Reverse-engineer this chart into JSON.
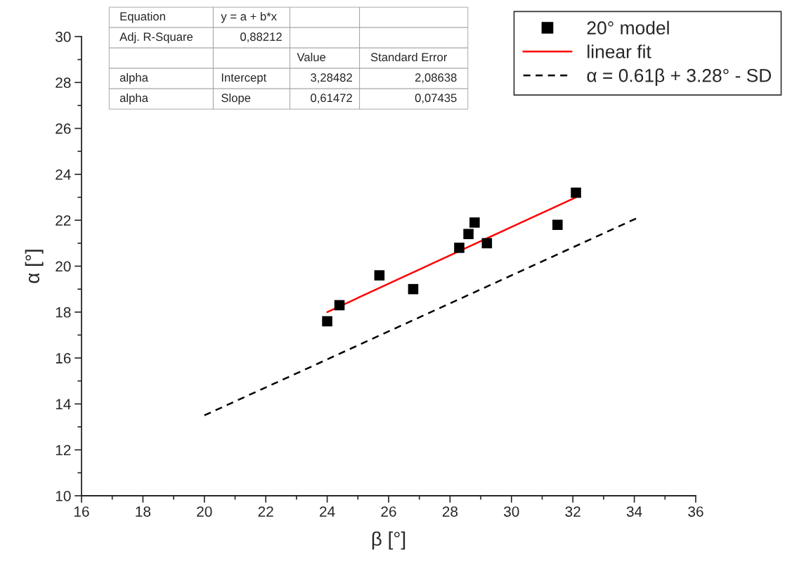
{
  "chart_data": {
    "type": "scatter",
    "xlabel": "β [°]",
    "ylabel": "α [°]",
    "xlim": [
      16,
      36
    ],
    "xticks": [
      16,
      18,
      20,
      22,
      24,
      26,
      28,
      30,
      32,
      34,
      36
    ],
    "ylim": [
      10,
      30
    ],
    "yticks": [
      10,
      12,
      14,
      16,
      18,
      20,
      22,
      24,
      26,
      28,
      30
    ],
    "grid": false,
    "legend": "top right",
    "series": [
      {
        "name": "20° model",
        "marker": "square",
        "color": "#000000",
        "x": [
          24.0,
          24.4,
          25.7,
          26.8,
          28.3,
          28.6,
          28.8,
          29.2,
          31.5,
          32.1
        ],
        "values": [
          17.6,
          18.3,
          19.6,
          19.0,
          20.8,
          21.4,
          21.9,
          21.0,
          21.8,
          23.2
        ]
      },
      {
        "name": "linear fit",
        "type": "line",
        "line_style": "solid",
        "color": "#ff0000",
        "x": [
          24.0,
          32.1
        ],
        "values": [
          18.0,
          23.0
        ]
      },
      {
        "name": "α = 0.61β + 3.28° - SD",
        "type": "line",
        "line_style": "dashed",
        "color": "#000000",
        "x": [
          20.0,
          34.1
        ],
        "values": [
          13.5,
          22.1
        ]
      }
    ],
    "annotations": [
      "Equation\ty = a + b*x\t\t",
      "Adj. R-Square\t0,88212\t\t",
      "\t\tValue\tStandard Error",
      "alpha\tIntercept\t3,28482\t2,08638",
      "alpha\tSlope\t0,61472\t0,07435"
    ]
  }
}
